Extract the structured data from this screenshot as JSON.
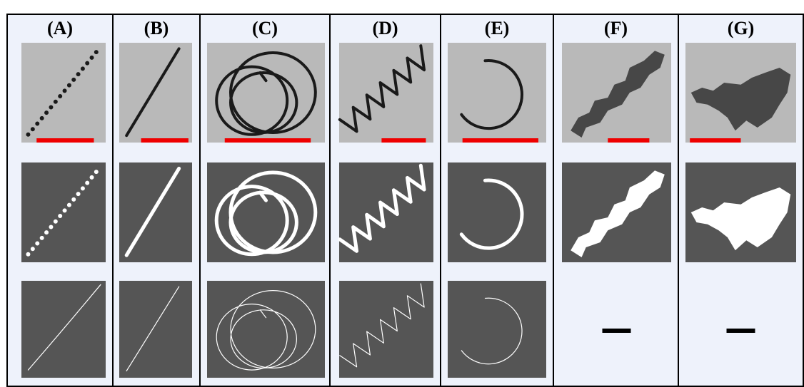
{
  "figure": {
    "columns": [
      {
        "label": "(A)"
      },
      {
        "label": "(B)"
      },
      {
        "label": "(C)"
      },
      {
        "label": "(D)"
      },
      {
        "label": "(E)"
      },
      {
        "label": "(F)"
      },
      {
        "label": "(G)"
      }
    ]
  }
}
